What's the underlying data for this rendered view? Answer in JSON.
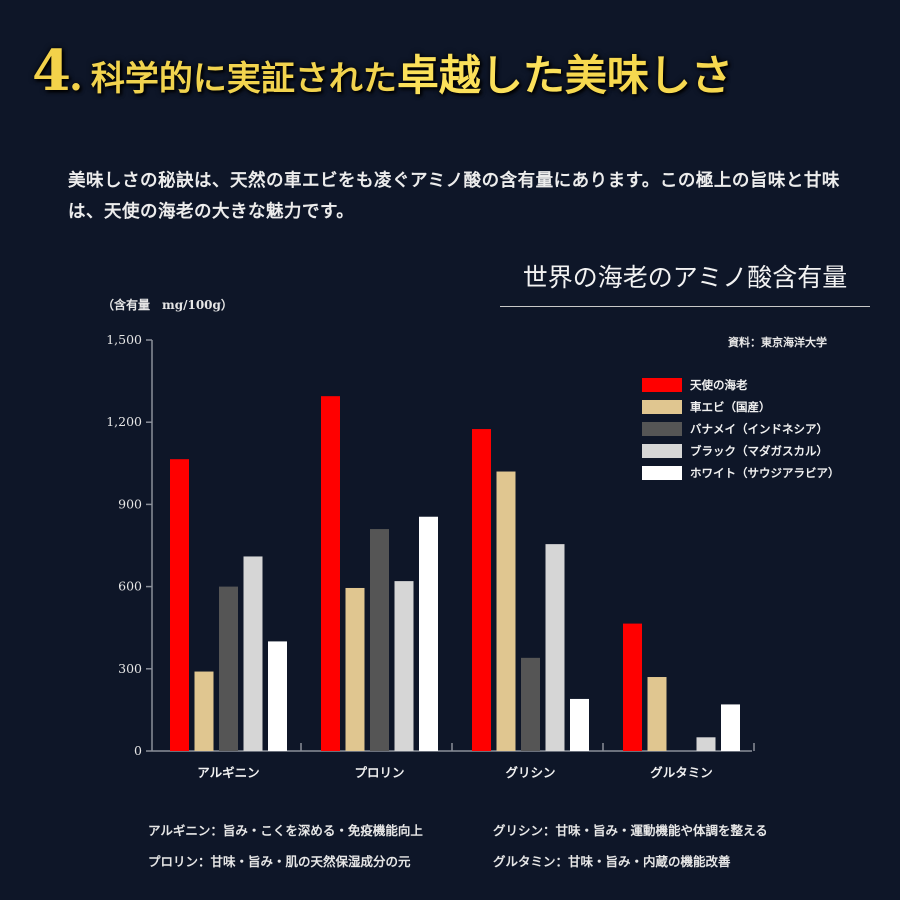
{
  "headline": {
    "number": "4",
    "dot": ".",
    "part1": "科学的に実証された",
    "part2": "卓越した",
    "part3": "美味しさ"
  },
  "intro": "美味しさの秘訣は、天然の車エビをも凌ぐアミノ酸の含有量にあります。この極上の旨味と甘味は、天使の海老の大きな魅力です。",
  "chart_heading": "世界の海老のアミノ酸含有量",
  "unit_label": "（含有量　mg/100g）",
  "source_label": "資料：東京海洋大学",
  "chart_data": {
    "type": "bar",
    "title": "世界の海老のアミノ酸含有量",
    "ylabel": "（含有量　mg/100g）",
    "ylim": [
      0,
      1500
    ],
    "yticks": [
      0,
      300,
      600,
      900,
      1200,
      1500
    ],
    "ytick_labels": [
      "0",
      "300",
      "600",
      "900",
      "1,200",
      "1,500"
    ],
    "grid": false,
    "legend_position": "top-right",
    "categories": [
      "アルギニン",
      "プロリン",
      "グリシン",
      "グルタミン"
    ],
    "series": [
      {
        "name": "天使の海老",
        "color": "#ff0000",
        "values": [
          1065,
          1295,
          1175,
          465
        ]
      },
      {
        "name": "車エビ（国産）",
        "color": "#e0c690",
        "values": [
          290,
          595,
          1020,
          270
        ]
      },
      {
        "name": "バナメイ（インドネシア）",
        "color": "#555555",
        "values": [
          600,
          810,
          340,
          0
        ]
      },
      {
        "name": "ブラック（マダガスカル）",
        "color": "#d6d6d6",
        "values": [
          710,
          620,
          755,
          50
        ]
      },
      {
        "name": "ホワイト（サウジアラビア）",
        "color": "#ffffff",
        "values": [
          400,
          855,
          190,
          170
        ]
      }
    ]
  },
  "notes": [
    "アルギニン：旨み・こくを深める・免疫機能向上",
    "グリシン：甘味・旨み・運動機能や体調を整える",
    "プロリン：甘味・旨み・肌の天然保湿成分の元",
    "グルタミン：甘味・旨み・内蔵の機能改善"
  ]
}
